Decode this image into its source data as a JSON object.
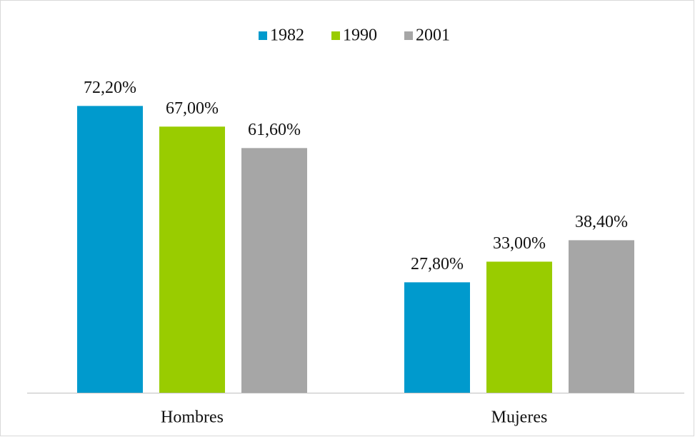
{
  "chart_data": {
    "type": "bar",
    "categories": [
      "Hombres",
      "Mujeres"
    ],
    "series": [
      {
        "name": "1982",
        "color": "#009ACD",
        "values": [
          72.2,
          27.8
        ],
        "value_labels": [
          "72,20%",
          "27,80%"
        ]
      },
      {
        "name": "1990",
        "color": "#99CC00",
        "values": [
          67.0,
          33.0
        ],
        "value_labels": [
          "67,00%",
          "33,00%"
        ]
      },
      {
        "name": "2001",
        "color": "#A6A6A6",
        "values": [
          61.6,
          38.4
        ],
        "value_labels": [
          "61,60%",
          "38,40%"
        ]
      }
    ],
    "ylim": [
      0,
      80
    ],
    "legend": "top"
  }
}
